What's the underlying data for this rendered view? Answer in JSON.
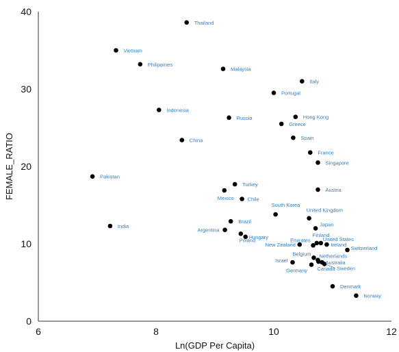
{
  "chart_data": {
    "type": "scatter",
    "title": "",
    "xlabel": "Ln(GDP Per Capita)",
    "ylabel": "FEMALE_RATIO",
    "xlim": [
      6,
      12
    ],
    "ylim": [
      0,
      40
    ],
    "xticks": [
      6,
      8,
      10,
      12
    ],
    "yticks": [
      0,
      10,
      20,
      30,
      40
    ],
    "grid": false,
    "legend": "none",
    "point_color": "#000000",
    "label_color": "#2a7fd4",
    "points": [
      {
        "label": "Thailand",
        "x": 8.52,
        "y": 38.6
      },
      {
        "label": "Vietnam",
        "x": 7.32,
        "y": 35.0
      },
      {
        "label": "Philippines",
        "x": 7.73,
        "y": 33.2
      },
      {
        "label": "Malaysia",
        "x": 9.14,
        "y": 32.6
      },
      {
        "label": "Italy",
        "x": 10.48,
        "y": 31.0
      },
      {
        "label": "Portugal",
        "x": 10.0,
        "y": 29.5
      },
      {
        "label": "Indonesia",
        "x": 8.05,
        "y": 27.3
      },
      {
        "label": "Russia",
        "x": 9.24,
        "y": 26.3
      },
      {
        "label": "Hong Kong",
        "x": 10.37,
        "y": 26.4
      },
      {
        "label": "Greece",
        "x": 10.13,
        "y": 25.5
      },
      {
        "label": "China",
        "x": 8.44,
        "y": 23.4
      },
      {
        "label": "Spain",
        "x": 10.33,
        "y": 23.7
      },
      {
        "label": "France",
        "x": 10.62,
        "y": 21.8
      },
      {
        "label": "Singapore",
        "x": 10.75,
        "y": 20.5
      },
      {
        "label": "Pakistan",
        "x": 6.92,
        "y": 18.7
      },
      {
        "label": "Turkey",
        "x": 9.34,
        "y": 17.7
      },
      {
        "label": "Mexico",
        "x": 9.16,
        "y": 16.9
      },
      {
        "label": "Austria",
        "x": 10.75,
        "y": 17.0
      },
      {
        "label": "Chile",
        "x": 9.46,
        "y": 15.8
      },
      {
        "label": "South Korea",
        "x": 10.03,
        "y": 13.8
      },
      {
        "label": "United Kingdom",
        "x": 10.6,
        "y": 13.3
      },
      {
        "label": "India",
        "x": 7.22,
        "y": 12.3
      },
      {
        "label": "Brazil",
        "x": 9.27,
        "y": 12.9
      },
      {
        "label": "Argentina",
        "x": 9.17,
        "y": 11.8
      },
      {
        "label": "Japan",
        "x": 10.71,
        "y": 12.0
      },
      {
        "label": "Poland",
        "x": 9.44,
        "y": 11.3
      },
      {
        "label": "Hungary",
        "x": 9.52,
        "y": 10.9
      },
      {
        "label": "Finland",
        "x": 10.73,
        "y": 10.1
      },
      {
        "label": "United States",
        "x": 10.8,
        "y": 10.1
      },
      {
        "label": "Emirates",
        "x": 10.67,
        "y": 9.8
      },
      {
        "label": "New Zealand",
        "x": 10.44,
        "y": 9.9
      },
      {
        "label": "Ireland",
        "x": 10.9,
        "y": 9.9
      },
      {
        "label": "Switzerland",
        "x": 11.25,
        "y": 9.2
      },
      {
        "label": "Belgium",
        "x": 10.68,
        "y": 8.2
      },
      {
        "label": "Netherlands",
        "x": 10.75,
        "y": 7.9
      },
      {
        "label": "Australia",
        "x": 10.82,
        "y": 7.6
      },
      {
        "label": "Israel",
        "x": 10.32,
        "y": 7.6
      },
      {
        "label": "Germany",
        "x": 10.64,
        "y": 7.3
      },
      {
        "label": "Sweden",
        "x": 10.86,
        "y": 7.4
      },
      {
        "label": "Canada",
        "x": 10.76,
        "y": 7.7
      },
      {
        "label": "Denmark",
        "x": 11.0,
        "y": 4.5
      },
      {
        "label": "Norway",
        "x": 11.4,
        "y": 3.3
      }
    ]
  }
}
